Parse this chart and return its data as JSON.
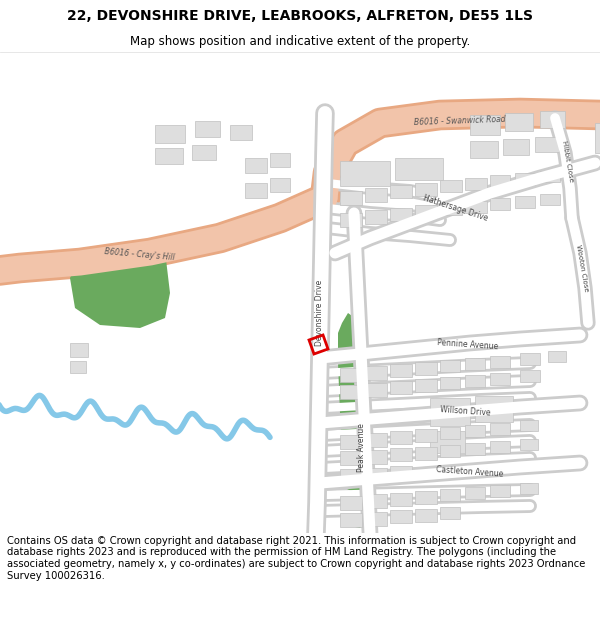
{
  "title": "22, DEVONSHIRE DRIVE, LEABROOKS, ALFRETON, DE55 1LS",
  "subtitle": "Map shows position and indicative extent of the property.",
  "footer": "Contains OS data © Crown copyright and database right 2021. This information is subject to Crown copyright and database rights 2023 and is reproduced with the permission of HM Land Registry. The polygons (including the associated geometry, namely x, y co-ordinates) are subject to Crown copyright and database rights 2023 Ordnance Survey 100026316.",
  "map_bg": "#f5f5f5",
  "road_color": "#ffffff",
  "road_outline": "#cccccc",
  "road_b_color": "#f2c4aa",
  "road_b_outline": "#e8a882",
  "building_fill": "#dedede",
  "building_outline": "#c0c0c0",
  "green_fill": "#6aaa5e",
  "green_dark": "#4a8a40",
  "river_color": "#85c8e8",
  "highlight_color": "#dd0000",
  "text_color": "#444444",
  "title_fontsize": 10,
  "subtitle_fontsize": 8.5,
  "footer_fontsize": 7.2
}
